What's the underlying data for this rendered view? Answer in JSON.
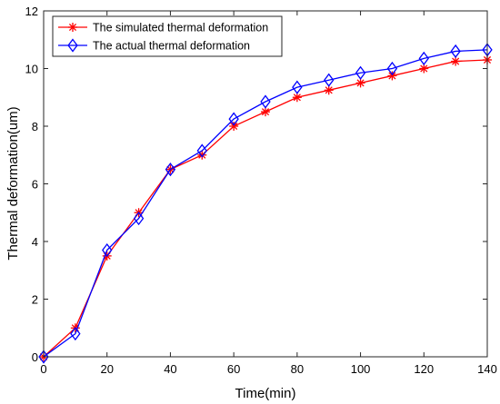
{
  "chart_data": {
    "type": "line",
    "xlabel": "Time(min)",
    "ylabel": "Thermal deformation(um)",
    "xlim": [
      0,
      140
    ],
    "ylim": [
      0,
      12
    ],
    "xticks": [
      0,
      20,
      40,
      60,
      80,
      100,
      120,
      140
    ],
    "yticks": [
      0,
      2,
      4,
      6,
      8,
      10,
      12
    ],
    "grid": false,
    "legend_position": "top-left",
    "x": [
      0,
      10,
      20,
      30,
      40,
      50,
      60,
      70,
      80,
      90,
      100,
      110,
      120,
      130,
      140
    ],
    "series": [
      {
        "name": "The simulated thermal deformation",
        "color": "#ff0000",
        "marker": "asterisk",
        "values": [
          0,
          1.0,
          3.5,
          5.0,
          6.5,
          7.0,
          8.0,
          8.5,
          9.0,
          9.25,
          9.5,
          9.75,
          10.0,
          10.25,
          10.3
        ]
      },
      {
        "name": "The actual thermal deformation",
        "color": "#0000ff",
        "marker": "diamond",
        "values": [
          0,
          0.8,
          3.7,
          4.8,
          6.5,
          7.15,
          8.25,
          8.85,
          9.35,
          9.6,
          9.85,
          10.0,
          10.35,
          10.6,
          10.65
        ]
      }
    ]
  }
}
